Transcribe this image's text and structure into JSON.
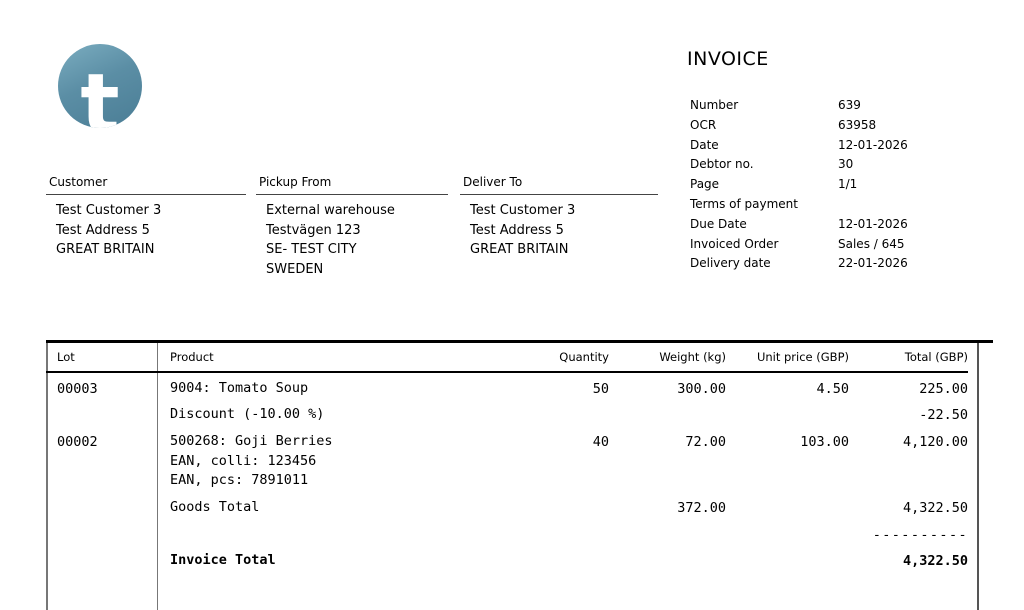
{
  "logo": {
    "letter": "t"
  },
  "invoice": {
    "title": "INVOICE"
  },
  "meta": {
    "rows": [
      {
        "label": "Number",
        "value": "639"
      },
      {
        "label": "OCR",
        "value": "63958"
      },
      {
        "label": "Date",
        "value": "12-01-2026"
      },
      {
        "label": "Debtor no.",
        "value": "30"
      },
      {
        "label": "Page",
        "value": "1/1"
      },
      {
        "label": "Terms of payment",
        "value": ""
      },
      {
        "label": "Due Date",
        "value": "12-01-2026"
      },
      {
        "label": "Invoiced Order",
        "value": "Sales / 645"
      },
      {
        "label": "Delivery date",
        "value": "22-01-2026"
      }
    ]
  },
  "addresses": [
    {
      "title": "Customer",
      "lines": [
        "Test Customer 3",
        "Test Address 5",
        "GREAT BRITAIN"
      ]
    },
    {
      "title": "Pickup From",
      "lines": [
        "External warehouse",
        "Testvägen 123",
        "SE- TEST CITY",
        "SWEDEN"
      ]
    },
    {
      "title": "Deliver To",
      "lines": [
        "Test Customer 3",
        "Test Address 5",
        "GREAT BRITAIN"
      ]
    }
  ],
  "table": {
    "headers": [
      "Lot",
      "Product",
      "Quantity",
      "Weight (kg)",
      "Unit price (GBP)",
      "Total (GBP)"
    ],
    "rows": [
      {
        "lot": "00003",
        "product_lines": [
          "9004: Tomato Soup"
        ],
        "quantity": "50",
        "weight": "300.00",
        "unit_price": "4.50",
        "total": "225.00"
      },
      {
        "product_lines": [
          "Discount (-10.00 %)"
        ],
        "total": "-22.50"
      },
      {
        "lot": "00002",
        "product_lines": [
          "500268: Goji Berries",
          "EAN, colli: 123456",
          "EAN, pcs: 7891011"
        ],
        "quantity": "40",
        "weight": "72.00",
        "unit_price": "103.00",
        "total": "4,120.00"
      },
      {
        "product_lines": [
          "Goods Total"
        ],
        "weight": "372.00",
        "total": "4,322.50"
      },
      {
        "separator": "----------"
      },
      {
        "product_lines": [
          "Invoice Total"
        ],
        "total": "4,322.50"
      }
    ]
  }
}
